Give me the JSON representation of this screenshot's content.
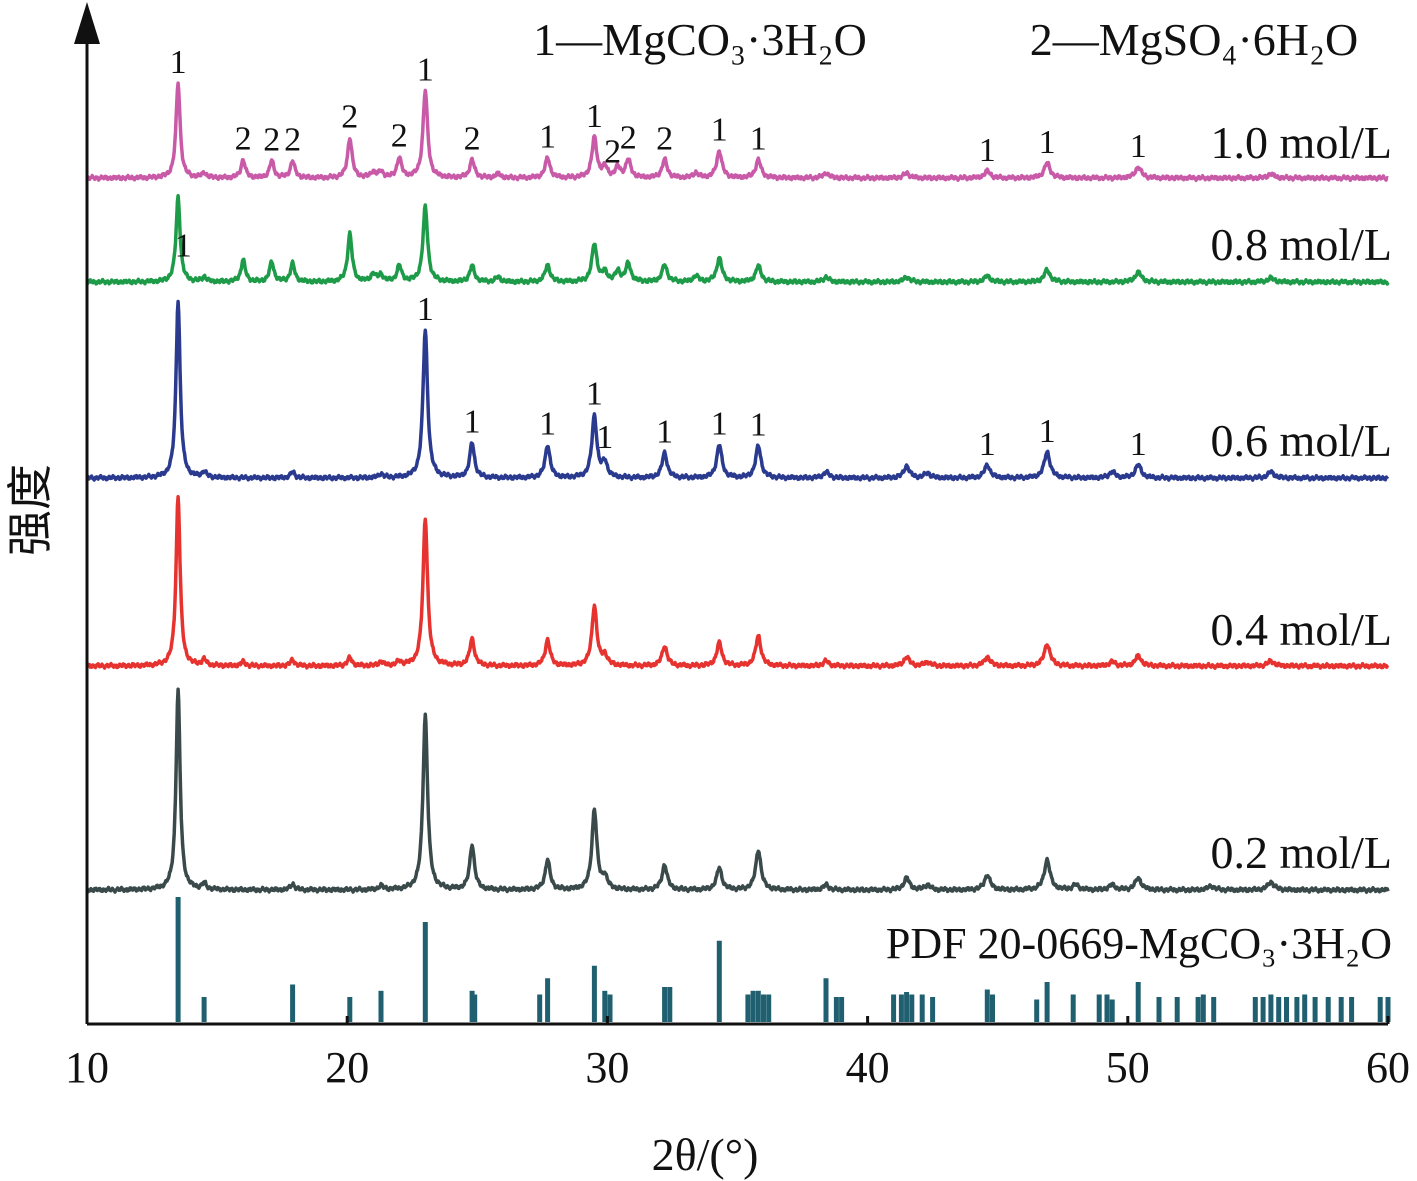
{
  "chart_data": {
    "type": "line",
    "xlabel": "2θ/(°)",
    "ylabel": "强度",
    "xlim": [
      10,
      60
    ],
    "x_ticks": [
      10,
      20,
      30,
      40,
      50,
      60
    ],
    "y_ticks_shown": false,
    "grid": false,
    "legend": {
      "placement": "top-right",
      "entries": [
        "1—MgCO₃·3H₂O",
        "2—MgSO₄·6H₂O"
      ]
    },
    "reference_pattern": {
      "name": "PDF 20-0669-MgCO₃·3H₂O",
      "color": "#1f5f6f",
      "positions": [
        13.5,
        14.5,
        17.9,
        20.1,
        21.3,
        23.0,
        24.8,
        24.9,
        27.4,
        27.7,
        29.5,
        29.9,
        30.1,
        32.2,
        32.4,
        34.3,
        35.4,
        35.6,
        35.8,
        36.0,
        36.2,
        38.4,
        38.8,
        39.0,
        41.0,
        41.3,
        41.5,
        41.7,
        42.1,
        42.5,
        44.6,
        44.8,
        46.5,
        46.9,
        47.9,
        48.9,
        49.2,
        49.4,
        50.4,
        51.2,
        51.9,
        52.7,
        52.9,
        53.3,
        54.9,
        55.2,
        55.5,
        55.8,
        56.1,
        56.5,
        56.8,
        57.2,
        57.7,
        58.2,
        58.6,
        59.7,
        60.0
      ],
      "intensities": [
        1.0,
        0.2,
        0.3,
        0.2,
        0.25,
        0.8,
        0.25,
        0.22,
        0.22,
        0.35,
        0.45,
        0.25,
        0.22,
        0.28,
        0.28,
        0.65,
        0.22,
        0.25,
        0.25,
        0.22,
        0.22,
        0.35,
        0.2,
        0.2,
        0.22,
        0.22,
        0.24,
        0.22,
        0.22,
        0.2,
        0.26,
        0.22,
        0.18,
        0.32,
        0.22,
        0.22,
        0.22,
        0.18,
        0.32,
        0.2,
        0.2,
        0.2,
        0.22,
        0.2,
        0.2,
        0.2,
        0.22,
        0.2,
        0.2,
        0.2,
        0.22,
        0.2,
        0.2,
        0.2,
        0.2,
        0.2,
        0.2
      ]
    },
    "series": [
      {
        "name": "1.0 mol/L",
        "color": "#c85aa8",
        "peaks": [
          [
            13.5,
            95
          ],
          [
            14.5,
            5
          ],
          [
            16.0,
            18
          ],
          [
            17.1,
            17
          ],
          [
            17.9,
            17
          ],
          [
            20.1,
            40
          ],
          [
            21.0,
            6
          ],
          [
            21.3,
            6
          ],
          [
            22.0,
            20
          ],
          [
            23.0,
            87
          ],
          [
            24.8,
            18
          ],
          [
            25.8,
            4
          ],
          [
            27.7,
            20
          ],
          [
            29.5,
            40
          ],
          [
            29.9,
            10
          ],
          [
            30.4,
            10
          ],
          [
            30.8,
            18
          ],
          [
            32.2,
            18
          ],
          [
            33.4,
            5
          ],
          [
            34.3,
            27
          ],
          [
            35.8,
            18
          ],
          [
            38.4,
            5
          ],
          [
            41.5,
            5
          ],
          [
            44.6,
            7
          ],
          [
            46.9,
            15
          ],
          [
            50.4,
            11
          ],
          [
            55.5,
            4
          ]
        ],
        "labels": [
          [
            13.5,
            "1"
          ],
          [
            16.0,
            "2"
          ],
          [
            17.1,
            "2"
          ],
          [
            17.9,
            "2"
          ],
          [
            20.1,
            "2"
          ],
          [
            22.0,
            "2"
          ],
          [
            23.0,
            "1"
          ],
          [
            24.8,
            "2"
          ],
          [
            27.7,
            "1"
          ],
          [
            29.5,
            "1"
          ],
          [
            30.2,
            "2"
          ],
          [
            30.8,
            "2"
          ],
          [
            32.2,
            "2"
          ],
          [
            34.3,
            "1"
          ],
          [
            35.8,
            "1"
          ],
          [
            44.6,
            "1"
          ],
          [
            46.9,
            "1"
          ],
          [
            50.4,
            "1"
          ]
        ]
      },
      {
        "name": "0.8 mol/L",
        "color": "#1e9b48",
        "peaks": [
          [
            13.5,
            85
          ],
          [
            14.5,
            5
          ],
          [
            16.0,
            22
          ],
          [
            17.1,
            20
          ],
          [
            17.9,
            18
          ],
          [
            20.1,
            48
          ],
          [
            21.0,
            8
          ],
          [
            21.3,
            7
          ],
          [
            22.0,
            16
          ],
          [
            23.0,
            75
          ],
          [
            24.8,
            16
          ],
          [
            25.8,
            5
          ],
          [
            27.7,
            17
          ],
          [
            29.5,
            38
          ],
          [
            29.9,
            9
          ],
          [
            30.4,
            10
          ],
          [
            30.8,
            18
          ],
          [
            32.2,
            17
          ],
          [
            33.4,
            6
          ],
          [
            34.3,
            24
          ],
          [
            35.8,
            16
          ],
          [
            38.4,
            5
          ],
          [
            41.5,
            5
          ],
          [
            44.6,
            6
          ],
          [
            46.9,
            12
          ],
          [
            50.4,
            10
          ],
          [
            55.5,
            4
          ]
        ],
        "labels": [
          [
            13.7,
            "1"
          ]
        ]
      },
      {
        "name": "0.6 mol/L",
        "color": "#2a3b8f",
        "peaks": [
          [
            13.5,
            178
          ],
          [
            14.5,
            6
          ],
          [
            17.9,
            6
          ],
          [
            21.3,
            4
          ],
          [
            23.0,
            148
          ],
          [
            24.8,
            35
          ],
          [
            27.7,
            33
          ],
          [
            29.5,
            62
          ],
          [
            29.9,
            15
          ],
          [
            32.2,
            25
          ],
          [
            34.3,
            33
          ],
          [
            35.8,
            32
          ],
          [
            38.4,
            6
          ],
          [
            41.5,
            12
          ],
          [
            42.3,
            5
          ],
          [
            44.6,
            13
          ],
          [
            46.9,
            26
          ],
          [
            49.4,
            6
          ],
          [
            50.4,
            13
          ],
          [
            55.5,
            6
          ]
        ],
        "labels": [
          [
            23.0,
            "1"
          ],
          [
            24.8,
            "1"
          ],
          [
            27.7,
            "1"
          ],
          [
            29.5,
            "1"
          ],
          [
            29.9,
            "1"
          ],
          [
            32.2,
            "1"
          ],
          [
            34.3,
            "1"
          ],
          [
            35.8,
            "1"
          ],
          [
            44.6,
            "1"
          ],
          [
            46.9,
            "1"
          ],
          [
            50.4,
            "1"
          ]
        ]
      },
      {
        "name": "0.4 mol/L",
        "color": "#e6332f",
        "peaks": [
          [
            13.5,
            170
          ],
          [
            14.5,
            6
          ],
          [
            16.0,
            4
          ],
          [
            17.9,
            6
          ],
          [
            20.1,
            8
          ],
          [
            21.3,
            4
          ],
          [
            22.0,
            4
          ],
          [
            23.0,
            148
          ],
          [
            24.8,
            27
          ],
          [
            27.7,
            26
          ],
          [
            29.5,
            60
          ],
          [
            29.9,
            10
          ],
          [
            32.2,
            20
          ],
          [
            34.3,
            23
          ],
          [
            35.8,
            30
          ],
          [
            38.4,
            5
          ],
          [
            41.5,
            9
          ],
          [
            42.3,
            4
          ],
          [
            44.6,
            9
          ],
          [
            46.9,
            22
          ],
          [
            49.4,
            4
          ],
          [
            50.4,
            10
          ],
          [
            55.5,
            5
          ]
        ],
        "labels": []
      },
      {
        "name": "0.2 mol/L",
        "color": "#3a4a4a",
        "peaks": [
          [
            13.5,
            200
          ],
          [
            14.5,
            6
          ],
          [
            17.9,
            6
          ],
          [
            21.3,
            4
          ],
          [
            23.0,
            175
          ],
          [
            24.8,
            45
          ],
          [
            27.7,
            30
          ],
          [
            29.5,
            80
          ],
          [
            29.9,
            12
          ],
          [
            32.2,
            25
          ],
          [
            34.3,
            22
          ],
          [
            35.8,
            40
          ],
          [
            38.4,
            5
          ],
          [
            41.5,
            12
          ],
          [
            42.3,
            5
          ],
          [
            44.6,
            15
          ],
          [
            46.9,
            30
          ],
          [
            48.0,
            5
          ],
          [
            49.4,
            5
          ],
          [
            50.4,
            12
          ],
          [
            53.2,
            4
          ],
          [
            55.5,
            8
          ]
        ],
        "labels": []
      }
    ]
  }
}
